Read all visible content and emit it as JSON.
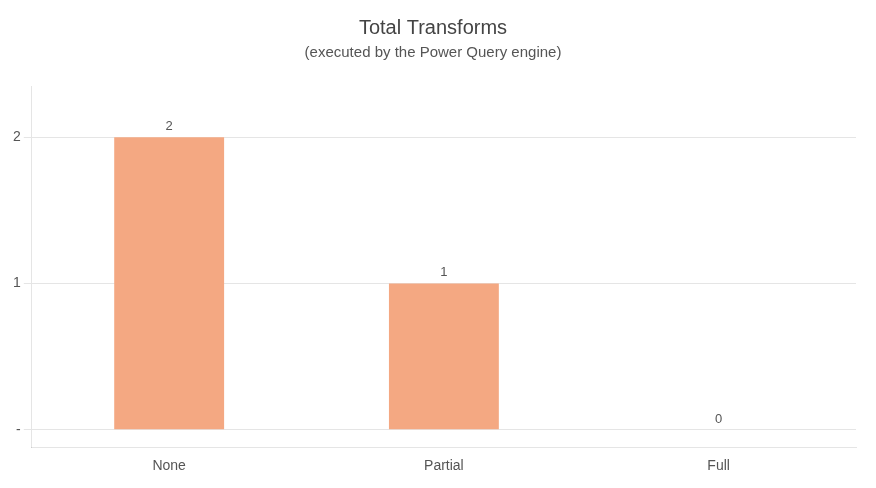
{
  "chart_data": {
    "type": "bar",
    "title": "Total Transforms",
    "subtitle": "(executed by the Power Query engine)",
    "categories": [
      "None",
      "Partial",
      "Full"
    ],
    "values": [
      2,
      1,
      0
    ],
    "color": "#F4A882",
    "ylim": [
      -0.12,
      2.35
    ],
    "yticks": [
      {
        "value": 0,
        "label": "-"
      },
      1,
      2
    ],
    "grid": true,
    "data_labels": true
  }
}
